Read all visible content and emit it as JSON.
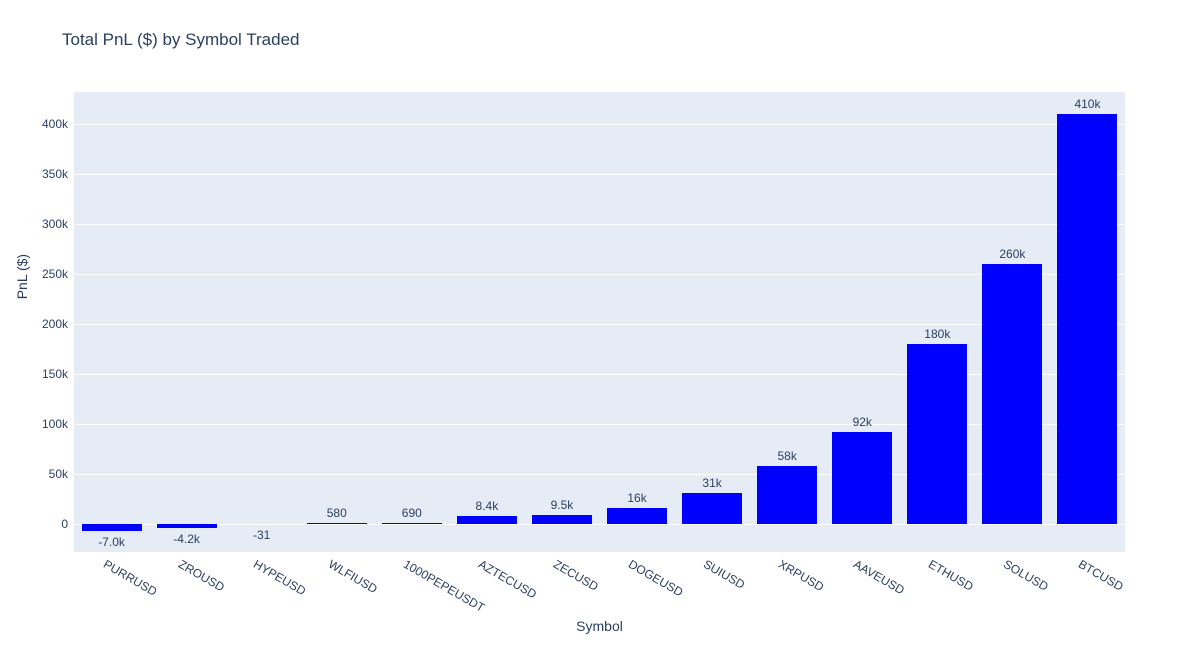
{
  "title": "Total PnL ($) by Symbol Traded",
  "chart_data": {
    "type": "bar",
    "title": "Total PnL ($) by Symbol Traded",
    "xlabel": "Symbol",
    "ylabel": "PnL ($)",
    "categories": [
      "PURRUSD",
      "ZROUSD",
      "HYPEUSD",
      "WLFIUSD",
      "1000PEPEUSDT",
      "AZTECUSD",
      "ZECUSD",
      "DOGEUSD",
      "SUIUSD",
      "XRPUSD",
      "AAVEUSD",
      "ETHUSD",
      "SOLUSD",
      "BTCUSD"
    ],
    "values": [
      -7000,
      -4200,
      -31,
      580,
      690,
      8400,
      9500,
      16000,
      31000,
      58000,
      92000,
      180000,
      260000,
      410000
    ],
    "value_labels": [
      "-7.0k",
      "-4.2k",
      "-31",
      "580",
      "690",
      "8.4k",
      "9.5k",
      "16k",
      "31k",
      "58k",
      "92k",
      "180k",
      "260k",
      "410k"
    ],
    "ytick_values": [
      0,
      50000,
      100000,
      150000,
      200000,
      250000,
      300000,
      350000,
      400000
    ],
    "ytick_labels": [
      "0",
      "50k",
      "100k",
      "150k",
      "200k",
      "250k",
      "300k",
      "350k",
      "400k"
    ],
    "ylim": [
      -28000,
      432000
    ],
    "xtick_angle_deg": 30,
    "grid": true,
    "legend_position": "none",
    "colors": {
      "bar": "#0000ff",
      "plot_background": "#e5ecf6",
      "gridline": "#ffffff",
      "text": "#2a3f5f"
    }
  }
}
